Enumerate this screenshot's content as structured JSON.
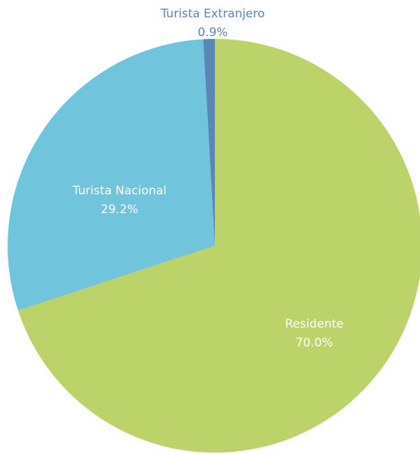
{
  "chart_data": {
    "type": "pie",
    "title": "",
    "slices": [
      {
        "label": "Residente",
        "value": 70.0,
        "display": "70.0%",
        "color": "#bcd36a",
        "label_color": "#ffffff"
      },
      {
        "label": "Turista Nacional",
        "value": 29.2,
        "display": "29.2%",
        "color": "#70c4dc",
        "label_color": "#ffffff"
      },
      {
        "label": "Turista Extranjero",
        "value": 0.9,
        "display": "0.9%",
        "color": "#5b86b8",
        "label_color": "#5b86b8"
      }
    ],
    "start": "12 o'clock",
    "direction": "clockwise",
    "legend": "none"
  }
}
